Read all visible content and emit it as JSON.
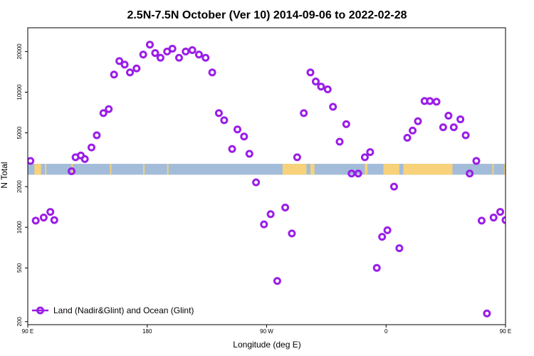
{
  "chart_data": {
    "type": "scatter",
    "title": "2.5N-7.5N October (Ver 10)   2014-09-06 to 2022-02-28",
    "xlabel": "Longitude (deg E)",
    "ylabel": "N Total",
    "xlim": [
      90,
      450
    ],
    "ylim": [
      190,
      30000
    ],
    "y_scale": "log",
    "x_ticks": [
      {
        "value": 90,
        "label": "90 E"
      },
      {
        "value": 180,
        "label": "180"
      },
      {
        "value": 270,
        "label": "90 W"
      },
      {
        "value": 360,
        "label": "0"
      },
      {
        "value": 450,
        "label": "90 E"
      },
      {
        "value": 540,
        "label": "180"
      }
    ],
    "y_ticks": [
      {
        "value": 200,
        "label": "200"
      },
      {
        "value": 500,
        "label": "500"
      },
      {
        "value": 1000,
        "label": "1000"
      },
      {
        "value": 2000,
        "label": "2000"
      },
      {
        "value": 5000,
        "label": "5000"
      },
      {
        "value": 10000,
        "label": "10000"
      },
      {
        "value": 20000,
        "label": "20000"
      }
    ],
    "grid": false,
    "legend_position": "bottom-left",
    "colors": {
      "points": "#9a1de8",
      "ocean_band": "#a3bcd9",
      "land_band": "#f7d27a"
    },
    "band_y": [
      2450,
      2950
    ],
    "land_segments": [
      [
        95,
        100
      ],
      [
        103,
        104
      ],
      [
        123,
        124
      ],
      [
        152,
        153
      ],
      [
        177,
        178
      ],
      [
        195,
        196
      ],
      [
        282,
        300
      ],
      [
        303,
        306
      ],
      [
        344,
        346
      ],
      [
        358,
        370
      ],
      [
        373,
        410
      ],
      [
        440,
        441
      ],
      [
        449,
        452
      ],
      [
        452,
        453
      ],
      [
        467,
        468
      ]
    ],
    "series": [
      {
        "name": "Land (Nadir&Glint) and Ocean (Glint)",
        "points": [
          [
            92,
            3100
          ],
          [
            96,
            1120
          ],
          [
            102,
            1180
          ],
          [
            107,
            1300
          ],
          [
            110,
            1130
          ],
          [
            123,
            2600
          ],
          [
            126,
            3300
          ],
          [
            130,
            3400
          ],
          [
            133,
            3200
          ],
          [
            138,
            3900
          ],
          [
            142,
            4800
          ],
          [
            147,
            7000
          ],
          [
            151,
            7500
          ],
          [
            155,
            13500
          ],
          [
            159,
            17000
          ],
          [
            163,
            16000
          ],
          [
            167,
            14000
          ],
          [
            172,
            15000
          ],
          [
            177,
            19000
          ],
          [
            182,
            22500
          ],
          [
            186,
            19500
          ],
          [
            190,
            18000
          ],
          [
            195,
            20000
          ],
          [
            199,
            21000
          ],
          [
            204,
            18000
          ],
          [
            209,
            20000
          ],
          [
            214,
            20500
          ],
          [
            219,
            19000
          ],
          [
            224,
            18000
          ],
          [
            229,
            14000
          ],
          [
            234,
            7000
          ],
          [
            238,
            6200
          ],
          [
            244,
            3800
          ],
          [
            248,
            5300
          ],
          [
            253,
            4700
          ],
          [
            257,
            3500
          ],
          [
            262,
            2150
          ],
          [
            268,
            1050
          ],
          [
            273,
            1250
          ],
          [
            278,
            400
          ],
          [
            284,
            1400
          ],
          [
            289,
            900
          ],
          [
            293,
            3300
          ],
          [
            298,
            7000
          ],
          [
            303,
            14000
          ],
          [
            307,
            12000
          ],
          [
            311,
            11000
          ],
          [
            316,
            10500
          ],
          [
            320,
            7800
          ],
          [
            325,
            4300
          ],
          [
            330,
            5800
          ],
          [
            334,
            2500
          ],
          [
            339,
            2500
          ],
          [
            344,
            3300
          ],
          [
            348,
            3600
          ],
          [
            353,
            500
          ],
          [
            357,
            850
          ],
          [
            361,
            950
          ],
          [
            366,
            2000
          ],
          [
            370,
            700
          ],
          [
            376,
            4600
          ],
          [
            380,
            5200
          ],
          [
            384,
            6100
          ],
          [
            389,
            8600
          ],
          [
            393,
            8600
          ],
          [
            398,
            8500
          ],
          [
            403,
            5500
          ],
          [
            407,
            6700
          ],
          [
            411,
            5500
          ],
          [
            416,
            6300
          ],
          [
            420,
            4800
          ],
          [
            423,
            2500
          ],
          [
            428,
            3100
          ],
          [
            432,
            1120
          ],
          [
            436,
            230
          ],
          [
            441,
            1180
          ],
          [
            446,
            1300
          ],
          [
            450,
            1130
          ]
        ]
      }
    ],
    "legend_mirror_x": 360
  }
}
